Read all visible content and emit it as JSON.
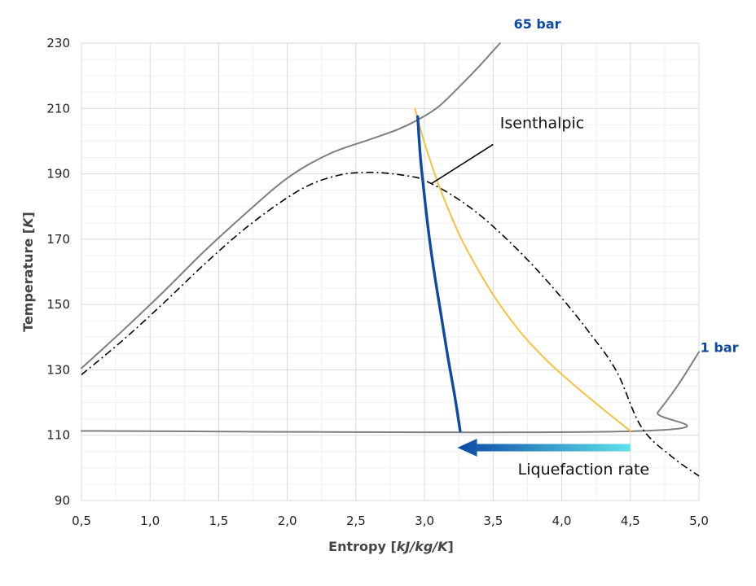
{
  "chart_data": {
    "type": "line",
    "xlabel_prefix": "Entropy [",
    "xlabel_unit": "kJ/kg/K",
    "xlabel_suffix": "]",
    "ylabel_prefix": "Temperature [",
    "ylabel_unit": "K",
    "ylabel_suffix": "]",
    "xlim": [
      0.5,
      5.0
    ],
    "ylim": [
      90,
      230
    ],
    "xticks": [
      0.5,
      1.0,
      1.5,
      2.0,
      2.5,
      3.0,
      3.5,
      4.0,
      4.5,
      5.0
    ],
    "xtick_labels": [
      "0,5",
      "1,0",
      "1,5",
      "2,0",
      "2,5",
      "3,0",
      "3,5",
      "4,0",
      "4,5",
      "5,0"
    ],
    "yticks": [
      90,
      110,
      130,
      150,
      170,
      190,
      210,
      230
    ],
    "ytick_labels": [
      "90",
      "110",
      "130",
      "150",
      "170",
      "190",
      "210",
      "230"
    ],
    "grid": true,
    "minor_y_step": 5,
    "series": [
      {
        "name": "65 bar",
        "color": "#7f7f7f",
        "style": "solid",
        "points": [
          [
            0.5,
            130.5
          ],
          [
            0.8,
            142
          ],
          [
            1.1,
            154
          ],
          [
            1.4,
            166.5
          ],
          [
            1.7,
            178
          ],
          [
            2.0,
            188.7
          ],
          [
            2.3,
            196
          ],
          [
            2.6,
            200.5
          ],
          [
            2.8,
            203.5
          ],
          [
            2.95,
            206.5
          ],
          [
            3.1,
            210.5
          ],
          [
            3.25,
            216.5
          ],
          [
            3.4,
            223
          ],
          [
            3.55,
            230
          ]
        ]
      },
      {
        "name": "1 bar",
        "color": "#7f7f7f",
        "style": "solid",
        "points": [
          [
            0.5,
            111.3
          ],
          [
            4.58,
            111.3
          ],
          [
            4.7,
            117
          ],
          [
            4.85,
            125.5
          ],
          [
            5.0,
            135.5
          ]
        ]
      },
      {
        "name": "",
        "color": "#000000",
        "style": "dashdot",
        "points": [
          [
            0.5,
            128.5
          ],
          [
            0.8,
            139
          ],
          [
            1.1,
            150.5
          ],
          [
            1.4,
            162.5
          ],
          [
            1.7,
            173.5
          ],
          [
            2.0,
            182.7
          ],
          [
            2.2,
            187.3
          ],
          [
            2.4,
            189.8
          ],
          [
            2.55,
            190.4
          ],
          [
            2.7,
            190.3
          ],
          [
            2.9,
            189.2
          ],
          [
            3.0,
            188
          ],
          [
            3.2,
            183.5
          ],
          [
            3.4,
            177.5
          ],
          [
            3.6,
            170
          ],
          [
            3.8,
            161.5
          ],
          [
            4.0,
            152
          ],
          [
            4.2,
            141.5
          ],
          [
            4.4,
            129.5
          ],
          [
            4.58,
            112.5
          ],
          [
            4.8,
            103.5
          ],
          [
            5.0,
            97.5
          ]
        ]
      },
      {
        "name": "Isenthalpic",
        "color": "#f5c242",
        "style": "solid",
        "points": [
          [
            2.93,
            210
          ],
          [
            3.0,
            199.5
          ],
          [
            3.1,
            187
          ],
          [
            3.2,
            176.5
          ],
          [
            3.3,
            167.5
          ],
          [
            3.5,
            153
          ],
          [
            3.7,
            141.5
          ],
          [
            3.9,
            132.5
          ],
          [
            4.1,
            125
          ],
          [
            4.3,
            118
          ],
          [
            4.5,
            111.3
          ]
        ]
      },
      {
        "name": "",
        "color": "#0d4aa6",
        "style": "solid-thick",
        "points": [
          [
            2.95,
            207.5
          ],
          [
            2.97,
            195
          ],
          [
            3.0,
            183
          ],
          [
            3.03,
            172
          ],
          [
            3.07,
            160
          ],
          [
            3.12,
            147
          ],
          [
            3.17,
            134
          ],
          [
            3.22,
            122
          ],
          [
            3.26,
            111.3
          ]
        ]
      }
    ],
    "annotations": [
      {
        "text": "Isenthalpic",
        "x": 3.55,
        "y": 204
      },
      {
        "text": "65 bar",
        "x": 3.65,
        "y": 234.5
      },
      {
        "text": "1 bar",
        "x": 5.01,
        "y": 135.5
      },
      {
        "text": "Liquefaction rate",
        "x": 3.68,
        "y": 98
      }
    ],
    "leader_line": {
      "from": [
        3.05,
        187
      ],
      "to": [
        3.5,
        199
      ]
    },
    "arrow": {
      "from_x": 4.5,
      "to_x": 3.24,
      "y": 106.2,
      "color_start": "#0d4aa6",
      "color_end": "#5ee3ea"
    }
  }
}
